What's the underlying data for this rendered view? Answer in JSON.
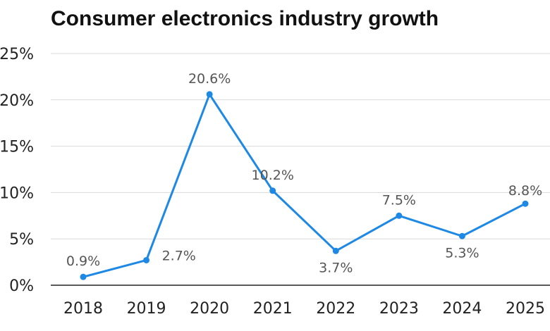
{
  "chart_data": {
    "type": "line",
    "title": "Consumer electronics industry growth",
    "xlabel": "",
    "ylabel": "",
    "categories": [
      "2018",
      "2019",
      "2020",
      "2021",
      "2022",
      "2023",
      "2024",
      "2025"
    ],
    "series": [
      {
        "values": [
          0.9,
          2.7,
          20.6,
          10.2,
          3.7,
          7.5,
          5.3,
          8.8
        ],
        "data_labels": [
          "0.9%",
          "2.7%",
          "20.6%",
          "10.2%",
          "3.7%",
          "7.5%",
          "5.3%",
          "8.8%"
        ]
      }
    ],
    "ylim": [
      0,
      25
    ],
    "yticks": [
      0,
      5,
      10,
      15,
      20,
      25
    ],
    "ytick_labels": [
      "0%",
      "5%",
      "10%",
      "15%",
      "20%",
      "25%"
    ],
    "grid": true,
    "legend": "none",
    "colors": {
      "line": "#1E88E5",
      "grid": "#D9D9D9",
      "axis": "#222222"
    }
  }
}
